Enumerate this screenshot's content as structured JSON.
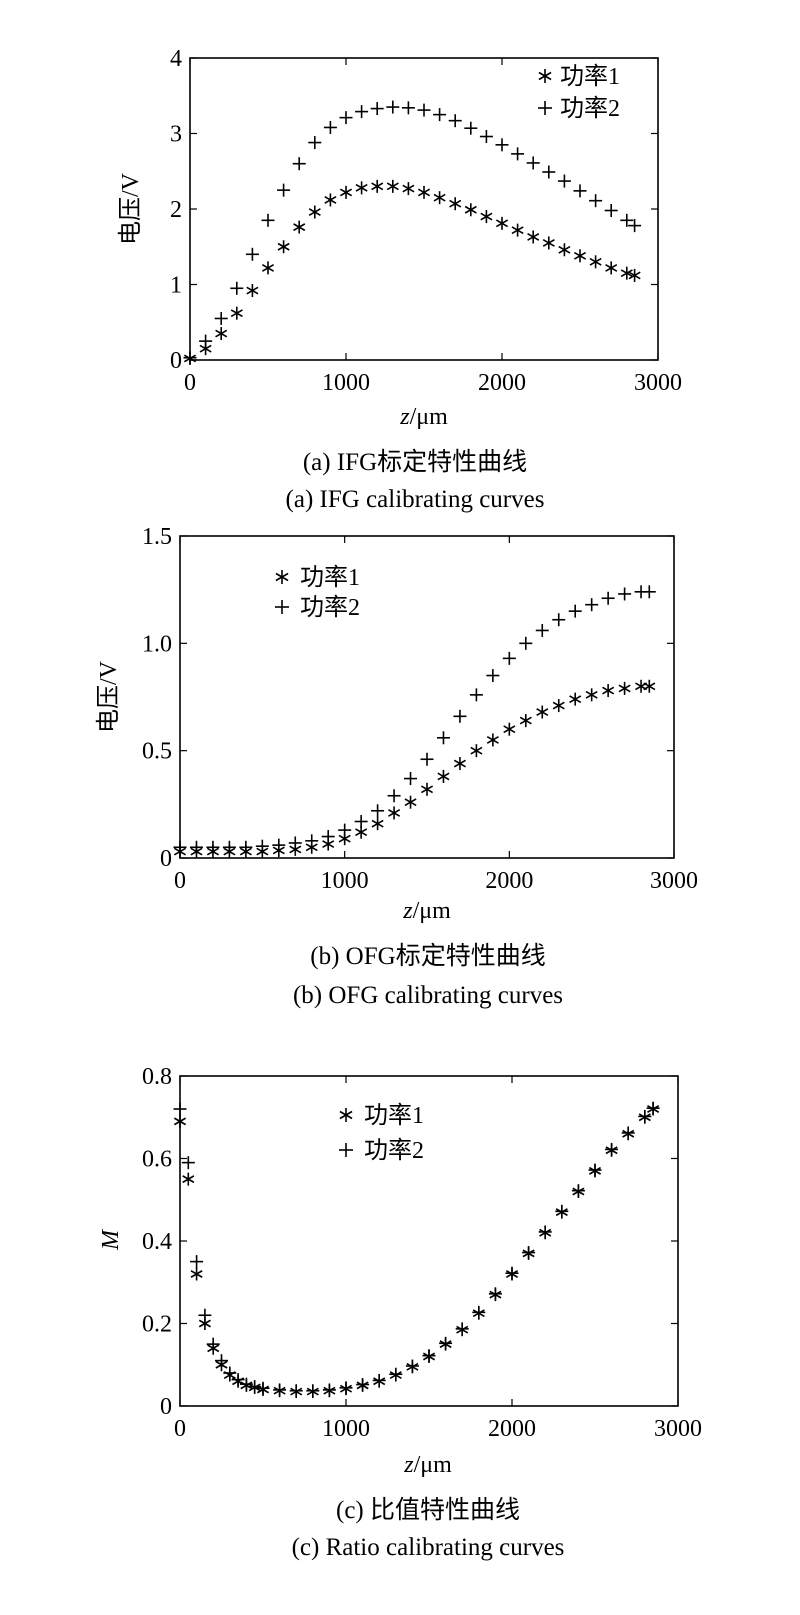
{
  "chart_data": [
    {
      "type": "scatter",
      "title": "",
      "xlabel_var": "z",
      "xlabel_unit": "/μm",
      "ylabel": "电压/V",
      "xlim": [
        0,
        3000
      ],
      "ylim": [
        0,
        4
      ],
      "xticks": [
        "0",
        "1000",
        "2000",
        "3000"
      ],
      "yticks": [
        "0",
        "1",
        "2",
        "3",
        "4"
      ],
      "legend": {
        "position": "top-right",
        "entries": [
          "功率1",
          "功率2"
        ]
      },
      "caption_cn": "(a) IFG标定特性曲线",
      "caption_en": "(a) IFG calibrating curves",
      "series": [
        {
          "name": "功率1",
          "marker": "asterisk",
          "x": [
            0,
            100,
            200,
            300,
            400,
            500,
            600,
            700,
            800,
            900,
            1000,
            1100,
            1200,
            1300,
            1400,
            1500,
            1600,
            1700,
            1800,
            1900,
            2000,
            2100,
            2200,
            2300,
            2400,
            2500,
            2600,
            2700,
            2800,
            2850
          ],
          "y": [
            0.02,
            0.15,
            0.35,
            0.62,
            0.92,
            1.22,
            1.5,
            1.76,
            1.96,
            2.12,
            2.22,
            2.28,
            2.3,
            2.3,
            2.27,
            2.22,
            2.15,
            2.07,
            1.99,
            1.9,
            1.81,
            1.72,
            1.63,
            1.55,
            1.46,
            1.38,
            1.3,
            1.22,
            1.15,
            1.12
          ]
        },
        {
          "name": "功率2",
          "marker": "plus",
          "x": [
            0,
            100,
            200,
            300,
            400,
            500,
            600,
            700,
            800,
            900,
            1000,
            1100,
            1200,
            1300,
            1400,
            1500,
            1600,
            1700,
            1800,
            1900,
            2000,
            2100,
            2200,
            2300,
            2400,
            2500,
            2600,
            2700,
            2800,
            2850
          ],
          "y": [
            0.03,
            0.25,
            0.55,
            0.95,
            1.4,
            1.85,
            2.25,
            2.6,
            2.88,
            3.08,
            3.21,
            3.29,
            3.33,
            3.35,
            3.34,
            3.31,
            3.25,
            3.17,
            3.07,
            2.96,
            2.85,
            2.73,
            2.61,
            2.49,
            2.37,
            2.24,
            2.11,
            1.98,
            1.85,
            1.78
          ]
        }
      ]
    },
    {
      "type": "scatter",
      "title": "",
      "xlabel_var": "z",
      "xlabel_unit": "/μm",
      "ylabel": "电压/V",
      "xlim": [
        0,
        3000
      ],
      "ylim": [
        0,
        1.5
      ],
      "xticks": [
        "0",
        "1000",
        "2000",
        "3000"
      ],
      "yticks": [
        "0",
        "0.5",
        "1.0",
        "1.5"
      ],
      "legend": {
        "position": "top-left",
        "entries": [
          "功率1",
          "功率2"
        ]
      },
      "caption_cn": "(b) OFG标定特性曲线",
      "caption_en": "(b) OFG calibrating curves",
      "series": [
        {
          "name": "功率1",
          "marker": "asterisk",
          "x": [
            0,
            100,
            200,
            300,
            400,
            500,
            600,
            700,
            800,
            900,
            1000,
            1100,
            1200,
            1300,
            1400,
            1500,
            1600,
            1700,
            1800,
            1900,
            2000,
            2100,
            2200,
            2300,
            2400,
            2500,
            2600,
            2700,
            2800,
            2850
          ],
          "y": [
            0.03,
            0.03,
            0.03,
            0.03,
            0.03,
            0.03,
            0.035,
            0.04,
            0.05,
            0.065,
            0.09,
            0.12,
            0.16,
            0.21,
            0.26,
            0.32,
            0.38,
            0.44,
            0.5,
            0.55,
            0.6,
            0.64,
            0.68,
            0.71,
            0.74,
            0.76,
            0.78,
            0.79,
            0.8,
            0.8
          ]
        },
        {
          "name": "功率2",
          "marker": "plus",
          "x": [
            0,
            100,
            200,
            300,
            400,
            500,
            600,
            700,
            800,
            900,
            1000,
            1100,
            1200,
            1300,
            1400,
            1500,
            1600,
            1700,
            1800,
            1900,
            2000,
            2100,
            2200,
            2300,
            2400,
            2500,
            2600,
            2700,
            2800,
            2850
          ],
          "y": [
            0.05,
            0.05,
            0.05,
            0.05,
            0.05,
            0.055,
            0.06,
            0.07,
            0.08,
            0.1,
            0.13,
            0.17,
            0.22,
            0.29,
            0.37,
            0.46,
            0.56,
            0.66,
            0.76,
            0.85,
            0.93,
            1.0,
            1.06,
            1.11,
            1.15,
            1.18,
            1.21,
            1.23,
            1.24,
            1.24
          ]
        }
      ]
    },
    {
      "type": "scatter",
      "title": "",
      "xlabel_var": "z",
      "xlabel_unit": "/μm",
      "ylabel": "M",
      "xlim": [
        0,
        3000
      ],
      "ylim": [
        0,
        0.8
      ],
      "xticks": [
        "0",
        "1000",
        "2000",
        "3000"
      ],
      "yticks": [
        "0",
        "0.2",
        "0.4",
        "0.6",
        "0.8"
      ],
      "legend": {
        "position": "top-center",
        "entries": [
          "功率1",
          "功率2"
        ]
      },
      "caption_cn": "(c) 比值特性曲线",
      "caption_en": "(c) Ratio calibrating curves",
      "series": [
        {
          "name": "功率1",
          "marker": "asterisk",
          "x": [
            0,
            50,
            100,
            150,
            200,
            250,
            300,
            350,
            400,
            450,
            500,
            600,
            700,
            800,
            900,
            1000,
            1100,
            1200,
            1300,
            1400,
            1500,
            1600,
            1700,
            1800,
            1900,
            2000,
            2100,
            2200,
            2300,
            2400,
            2500,
            2600,
            2700,
            2800,
            2850
          ],
          "y": [
            0.69,
            0.55,
            0.32,
            0.2,
            0.14,
            0.1,
            0.075,
            0.06,
            0.05,
            0.045,
            0.04,
            0.037,
            0.035,
            0.035,
            0.037,
            0.042,
            0.05,
            0.06,
            0.075,
            0.095,
            0.12,
            0.15,
            0.185,
            0.225,
            0.27,
            0.32,
            0.37,
            0.42,
            0.47,
            0.52,
            0.57,
            0.62,
            0.66,
            0.7,
            0.72
          ]
        },
        {
          "name": "功率2",
          "marker": "plus",
          "x": [
            0,
            50,
            100,
            150,
            200,
            250,
            300,
            350,
            400,
            450,
            500,
            600,
            700,
            800,
            900,
            1000,
            1100,
            1200,
            1300,
            1400,
            1500,
            1600,
            1700,
            1800,
            1900,
            2000,
            2100,
            2200,
            2300,
            2400,
            2500,
            2600,
            2700,
            2800,
            2850
          ],
          "y": [
            0.72,
            0.59,
            0.35,
            0.22,
            0.15,
            0.11,
            0.08,
            0.064,
            0.053,
            0.047,
            0.043,
            0.039,
            0.037,
            0.037,
            0.039,
            0.044,
            0.052,
            0.062,
            0.077,
            0.097,
            0.122,
            0.152,
            0.187,
            0.227,
            0.272,
            0.322,
            0.372,
            0.422,
            0.472,
            0.522,
            0.572,
            0.622,
            0.662,
            0.702,
            0.722
          ]
        }
      ]
    }
  ]
}
